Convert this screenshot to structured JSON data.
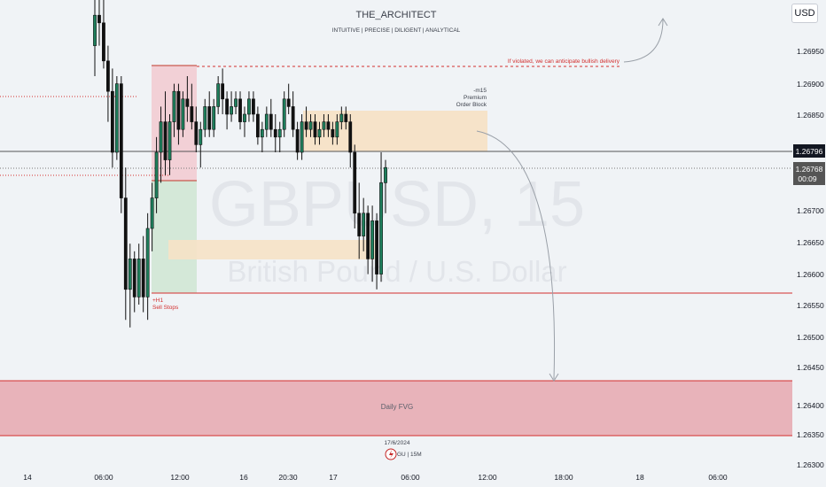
{
  "header": {
    "title": "THE_ARCHITECT",
    "subtitle": "INTUITIVE | PRECISE | DILIGENT | ANALYTICAL"
  },
  "currency_button": "USD",
  "watermark": {
    "symbol": "GBPUSD, 15",
    "name": "British Pound / U.S. Dollar"
  },
  "annotations": {
    "violation_note": "If violated, we can anticipate bullish delivery",
    "order_block": [
      "-m15",
      "Premium",
      "Order Block"
    ],
    "sell_stops": [
      "+H1",
      "Sell Stops"
    ],
    "daily_fvg": "Daily FVG",
    "footer_date": "17/6/2024",
    "footer_pair": "GU | 15M"
  },
  "price_tags": {
    "line_price": "1.26796",
    "current_price": "1.26768",
    "countdown": "00:09"
  },
  "colors": {
    "background": "#f0f3f6",
    "bull": "#1e7f5c",
    "bear": "#111111",
    "premium_zone": "#f6e2c6",
    "fvg_zone": "#e8b3ba",
    "red_line": "#d32f2f",
    "stop_zone": "#f2d0d6",
    "target_zone": "#d4e8d8",
    "current_price_tag": "#555555",
    "line_price_tag": "#131722"
  },
  "chart_data": {
    "type": "candlestick",
    "symbol": "GBPUSD",
    "timeframe": "15",
    "y_axis": {
      "ticks": [
        "1.26350",
        "1.26400",
        "1.26450",
        "1.26500",
        "1.26550",
        "1.26600",
        "1.26650",
        "1.26700",
        "1.26750",
        "1.26850",
        "1.26900",
        "1.26950"
      ],
      "range": [
        1.263,
        1.27
      ]
    },
    "x_axis": {
      "ticks": [
        "14",
        "06:00",
        "12:00",
        "16",
        "20:30",
        "17",
        "06:00",
        "12:00",
        "18:00",
        "18",
        "06:00"
      ]
    },
    "candles": [
      [
        1.2694,
        1.27,
        1.269,
        1.2698
      ],
      [
        1.2698,
        1.27,
        1.2694,
        1.2697
      ],
      [
        1.2697,
        1.27,
        1.2691,
        1.2692
      ],
      [
        1.2692,
        1.2694,
        1.2684,
        1.2688
      ],
      [
        1.2688,
        1.2691,
        1.2678,
        1.268
      ],
      [
        1.268,
        1.269,
        1.2679,
        1.2689
      ],
      [
        1.2689,
        1.269,
        1.2672,
        1.2674
      ],
      [
        1.2674,
        1.2678,
        1.2658,
        1.2662
      ],
      [
        1.2662,
        1.2668,
        1.2657,
        1.2666
      ],
      [
        1.2666,
        1.2667,
        1.2659,
        1.2661
      ],
      [
        1.2661,
        1.2668,
        1.266,
        1.2666
      ],
      [
        1.2666,
        1.2669,
        1.2659,
        1.2661
      ],
      [
        1.2661,
        1.2672,
        1.2658,
        1.267
      ],
      [
        1.267,
        1.2676,
        1.2667,
        1.2674
      ],
      [
        1.2674,
        1.2682,
        1.2672,
        1.268
      ],
      [
        1.268,
        1.2686,
        1.2676,
        1.2684
      ],
      [
        1.2684,
        1.2688,
        1.2677,
        1.2679
      ],
      [
        1.2679,
        1.2685,
        1.2677,
        1.2684
      ],
      [
        1.2684,
        1.2689,
        1.2682,
        1.2688
      ],
      [
        1.2688,
        1.2689,
        1.2681,
        1.2683
      ],
      [
        1.2683,
        1.2688,
        1.2682,
        1.2687
      ],
      [
        1.2687,
        1.269,
        1.2684,
        1.2686
      ],
      [
        1.2686,
        1.2689,
        1.2683,
        1.2684
      ],
      [
        1.2684,
        1.2686,
        1.268,
        1.2681
      ],
      [
        1.2681,
        1.2684,
        1.2678,
        1.2683
      ],
      [
        1.2683,
        1.2687,
        1.2682,
        1.2686
      ],
      [
        1.2686,
        1.2688,
        1.2682,
        1.2683
      ],
      [
        1.2683,
        1.2687,
        1.2682,
        1.2686
      ],
      [
        1.2686,
        1.269,
        1.2685,
        1.2689
      ],
      [
        1.2689,
        1.2691,
        1.2685,
        1.2687
      ],
      [
        1.2687,
        1.2688,
        1.2683,
        1.2685
      ],
      [
        1.2685,
        1.2688,
        1.2684,
        1.2686
      ],
      [
        1.2686,
        1.2688,
        1.2685,
        1.2687
      ],
      [
        1.2687,
        1.2688,
        1.2683,
        1.2684
      ],
      [
        1.2684,
        1.2686,
        1.2682,
        1.2685
      ],
      [
        1.2685,
        1.2688,
        1.2684,
        1.2687
      ],
      [
        1.2687,
        1.2688,
        1.2684,
        1.2685
      ],
      [
        1.2685,
        1.2686,
        1.2681,
        1.2682
      ],
      [
        1.2682,
        1.2684,
        1.268,
        1.2683
      ],
      [
        1.2683,
        1.2686,
        1.2682,
        1.2685
      ],
      [
        1.2685,
        1.2687,
        1.2682,
        1.2683
      ],
      [
        1.2683,
        1.2685,
        1.268,
        1.2682
      ],
      [
        1.2682,
        1.2684,
        1.268,
        1.2683
      ],
      [
        1.2683,
        1.2688,
        1.2682,
        1.2687
      ],
      [
        1.2687,
        1.2689,
        1.2685,
        1.2686
      ],
      [
        1.2686,
        1.2688,
        1.2682,
        1.2683
      ],
      [
        1.2683,
        1.2684,
        1.2679,
        1.268
      ],
      [
        1.268,
        1.2685,
        1.2679,
        1.2684
      ],
      [
        1.2684,
        1.2686,
        1.2682,
        1.2683
      ],
      [
        1.2683,
        1.2685,
        1.2682,
        1.2684
      ],
      [
        1.2684,
        1.2685,
        1.2681,
        1.2682
      ],
      [
        1.2682,
        1.2684,
        1.2681,
        1.2683
      ],
      [
        1.2683,
        1.2685,
        1.2682,
        1.2684
      ],
      [
        1.2684,
        1.2685,
        1.2682,
        1.2683
      ],
      [
        1.2683,
        1.2684,
        1.2681,
        1.2682
      ],
      [
        1.2682,
        1.2685,
        1.2681,
        1.2684
      ],
      [
        1.2684,
        1.2686,
        1.2683,
        1.2685
      ],
      [
        1.2685,
        1.2686,
        1.2683,
        1.2684
      ],
      [
        1.2684,
        1.2685,
        1.2678,
        1.268
      ],
      [
        1.268,
        1.2681,
        1.267,
        1.2672
      ],
      [
        1.2672,
        1.2676,
        1.2666,
        1.2669
      ],
      [
        1.2669,
        1.2674,
        1.2667,
        1.2672
      ],
      [
        1.2672,
        1.2673,
        1.2664,
        1.2666
      ],
      [
        1.2666,
        1.2673,
        1.2663,
        1.2671
      ],
      [
        1.2671,
        1.2672,
        1.2662,
        1.2664
      ],
      [
        1.2664,
        1.268,
        1.2663,
        1.2676
      ],
      [
        1.2676,
        1.2679,
        1.2672,
        1.2678
      ]
    ]
  }
}
